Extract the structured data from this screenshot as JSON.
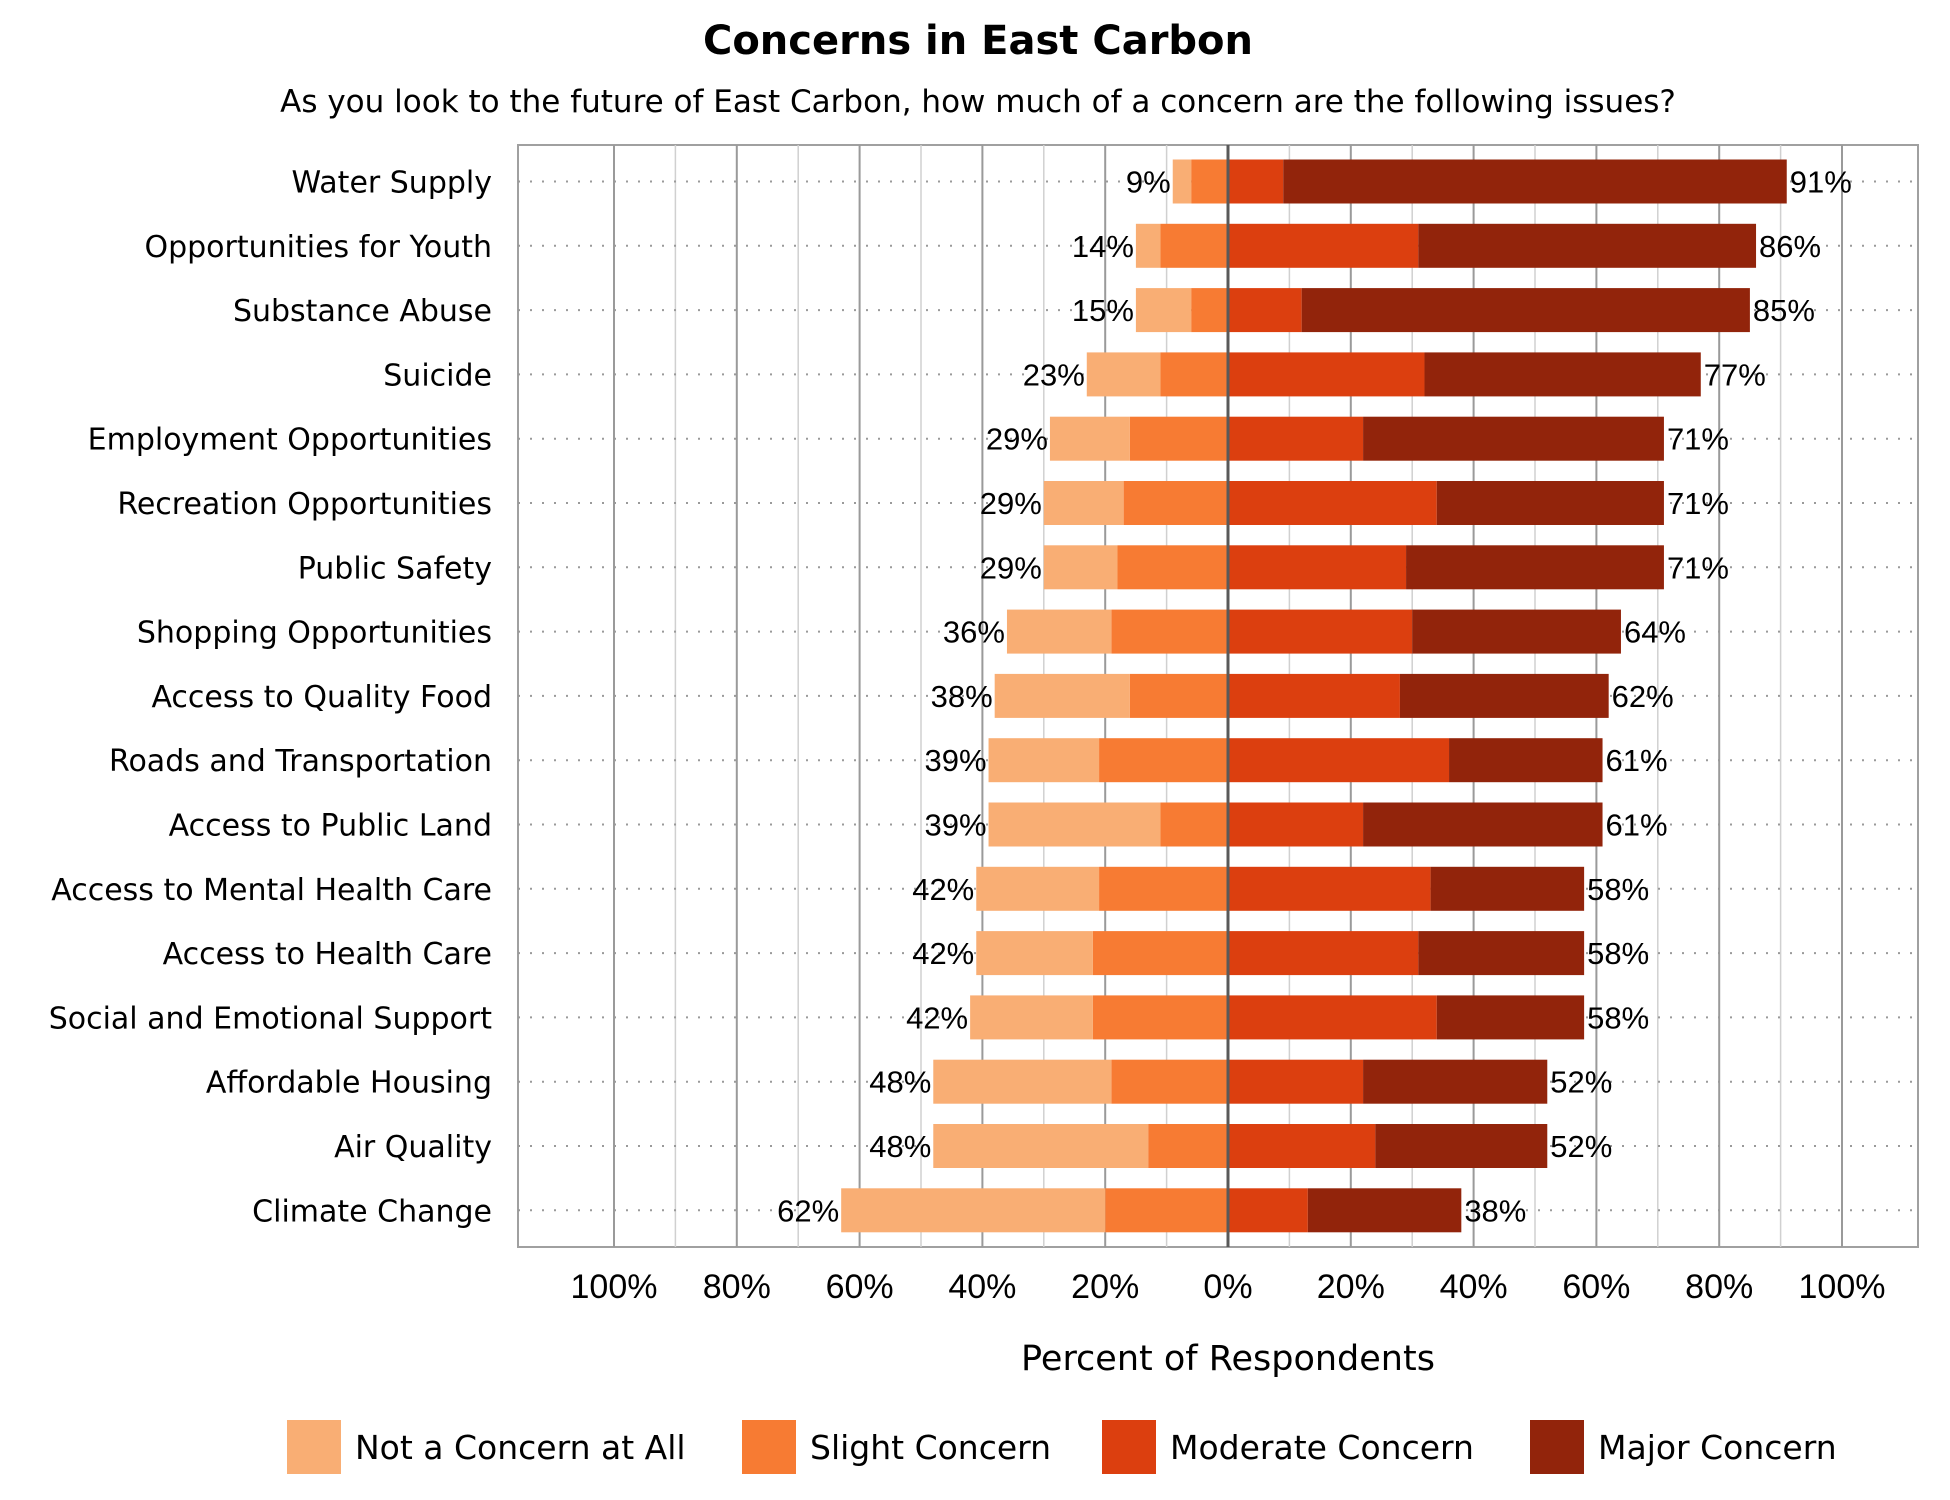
{
  "chart_data": {
    "type": "bar",
    "orientation": "horizontal",
    "stacked": "diverging",
    "title": "Concerns in East Carbon",
    "subtitle": "As you look to the future of East Carbon, how much of a concern are the following issues?",
    "xlabel": "Percent of Respondents",
    "xlim": [
      -100,
      100
    ],
    "x_ticks": [
      -100,
      -80,
      -60,
      -40,
      -20,
      0,
      20,
      40,
      60,
      80,
      100
    ],
    "x_tick_labels": [
      "100%",
      "80%",
      "60%",
      "40%",
      "20%",
      "0%",
      "20%",
      "40%",
      "60%",
      "80%",
      "100%"
    ],
    "grid": true,
    "legend_position": "bottom",
    "categories": [
      "Water Supply",
      "Opportunities for Youth",
      "Substance Abuse",
      "Suicide",
      "Employment Opportunities",
      "Recreation Opportunities",
      "Public Safety",
      "Shopping Opportunities",
      "Access to Quality Food",
      "Roads and Transportation",
      "Access to Public Land",
      "Access to Mental Health Care",
      "Access to Health Care",
      "Social and Emotional Support",
      "Affordable Housing",
      "Air Quality",
      "Climate Change"
    ],
    "series": [
      {
        "name": "Not a Concern at All",
        "color": "#F9AE74",
        "side": "negative",
        "values": [
          3,
          4,
          9,
          12,
          13,
          13,
          12,
          17,
          22,
          18,
          28,
          20,
          19,
          20,
          29,
          35,
          43
        ]
      },
      {
        "name": "Slight Concern",
        "color": "#F77B33",
        "side": "negative",
        "values": [
          6,
          11,
          6,
          11,
          16,
          17,
          18,
          19,
          16,
          21,
          11,
          21,
          22,
          22,
          19,
          13,
          20
        ]
      },
      {
        "name": "Moderate Concern",
        "color": "#DC3F0F",
        "side": "positive",
        "values": [
          9,
          31,
          12,
          32,
          22,
          34,
          29,
          30,
          28,
          36,
          22,
          33,
          31,
          34,
          22,
          24,
          13
        ]
      },
      {
        "name": "Major Concern",
        "color": "#92240B",
        "side": "positive",
        "values": [
          82,
          55,
          73,
          45,
          49,
          37,
          42,
          34,
          34,
          25,
          39,
          25,
          27,
          24,
          30,
          28,
          25
        ]
      }
    ],
    "negative_totals": [
      "9%",
      "14%",
      "15%",
      "23%",
      "29%",
      "29%",
      "29%",
      "36%",
      "38%",
      "39%",
      "39%",
      "42%",
      "42%",
      "42%",
      "48%",
      "48%",
      "62%"
    ],
    "positive_totals": [
      "91%",
      "86%",
      "85%",
      "77%",
      "71%",
      "71%",
      "71%",
      "64%",
      "62%",
      "61%",
      "61%",
      "58%",
      "58%",
      "58%",
      "52%",
      "52%",
      "38%"
    ]
  }
}
